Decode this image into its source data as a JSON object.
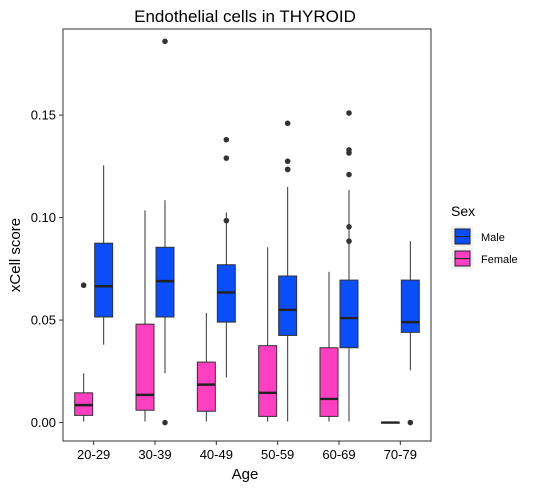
{
  "chart_data": {
    "type": "boxplot",
    "title": "Endothelial cells in THYROID",
    "xlabel": "Age",
    "ylabel": "xCell score",
    "categories": [
      "20-29",
      "30-39",
      "40-49",
      "50-59",
      "60-69",
      "70-79"
    ],
    "y_ticks": [
      0.0,
      0.05,
      0.1,
      0.15
    ],
    "y_tick_labels": [
      "0.00",
      "0.05",
      "0.10",
      "0.15"
    ],
    "ylim": [
      -0.009,
      0.192
    ],
    "grid": false,
    "legend": {
      "title": "Sex",
      "position": "right",
      "entries": [
        {
          "label": "Male",
          "color": "#0a4dfa"
        },
        {
          "label": "Female",
          "color": "#ff3fc2"
        }
      ]
    },
    "series": [
      {
        "name": "Female",
        "color": "#ff3fc2",
        "boxes": [
          {
            "category": "20-29",
            "whisker_low": 0.0005,
            "q1": 0.0035,
            "median": 0.0085,
            "q3": 0.0145,
            "whisker_high": 0.024,
            "outliers": [
              0.067
            ]
          },
          {
            "category": "30-39",
            "whisker_low": 0.0005,
            "q1": 0.006,
            "median": 0.0135,
            "q3": 0.048,
            "whisker_high": 0.1035,
            "outliers": []
          },
          {
            "category": "40-49",
            "whisker_low": 0.0005,
            "q1": 0.0055,
            "median": 0.0185,
            "q3": 0.0295,
            "whisker_high": 0.0535,
            "outliers": []
          },
          {
            "category": "50-59",
            "whisker_low": 0.0005,
            "q1": 0.003,
            "median": 0.0145,
            "q3": 0.0375,
            "whisker_high": 0.0855,
            "outliers": []
          },
          {
            "category": "60-69",
            "whisker_low": 0.0005,
            "q1": 0.003,
            "median": 0.0115,
            "q3": 0.0365,
            "whisker_high": 0.0735,
            "outliers": []
          },
          {
            "category": "70-79",
            "whisker_low": 0.0,
            "q1": 0.0,
            "median": 0.0,
            "q3": 0.0,
            "whisker_high": 0.0,
            "outliers": []
          }
        ]
      },
      {
        "name": "Male",
        "color": "#0a4dfa",
        "boxes": [
          {
            "category": "20-29",
            "whisker_low": 0.038,
            "q1": 0.0515,
            "median": 0.0665,
            "q3": 0.0875,
            "whisker_high": 0.1255,
            "outliers": []
          },
          {
            "category": "30-39",
            "whisker_low": 0.024,
            "q1": 0.0515,
            "median": 0.069,
            "q3": 0.0855,
            "whisker_high": 0.1085,
            "outliers": [
              0.186,
              0.0
            ]
          },
          {
            "category": "40-49",
            "whisker_low": 0.022,
            "q1": 0.049,
            "median": 0.0635,
            "q3": 0.077,
            "whisker_high": 0.1025,
            "outliers": [
              0.138,
              0.129,
              0.0985
            ]
          },
          {
            "category": "50-59",
            "whisker_low": 0.0005,
            "q1": 0.0425,
            "median": 0.055,
            "q3": 0.0715,
            "whisker_high": 0.115,
            "outliers": [
              0.146,
              0.1275,
              0.1235,
              0.1235
            ]
          },
          {
            "category": "60-69",
            "whisker_low": 0.0005,
            "q1": 0.0365,
            "median": 0.051,
            "q3": 0.0695,
            "whisker_high": 0.1135,
            "outliers": [
              0.151,
              0.133,
              0.1315,
              0.121,
              0.0955,
              0.0885
            ]
          },
          {
            "category": "70-79",
            "whisker_low": 0.0255,
            "q1": 0.044,
            "median": 0.049,
            "q3": 0.0695,
            "whisker_high": 0.0885,
            "outliers": [
              0.0
            ]
          }
        ]
      }
    ]
  }
}
